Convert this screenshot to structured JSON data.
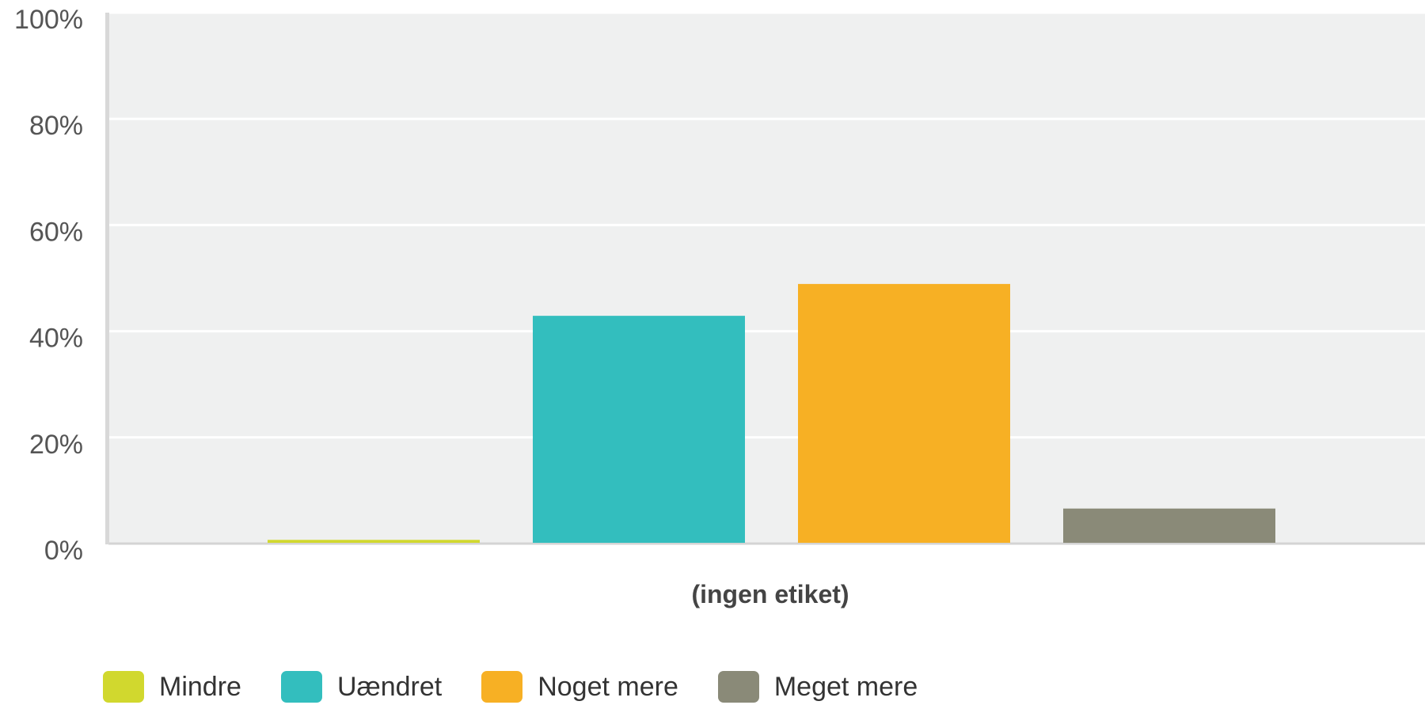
{
  "chart_data": {
    "type": "bar",
    "categories": [
      "(ingen etiket)"
    ],
    "series": [
      {
        "name": "Mindre",
        "values": [
          0.7
        ],
        "color": "#D1D82E"
      },
      {
        "name": "Uændret",
        "values": [
          42.9
        ],
        "color": "#33BEBE"
      },
      {
        "name": "Noget mere",
        "values": [
          48.9
        ],
        "color": "#F7B024"
      },
      {
        "name": "Meget mere",
        "values": [
          6.6
        ],
        "color": "#8A8A78"
      }
    ],
    "yticks": [
      "0%",
      "20%",
      "40%",
      "60%",
      "80%",
      "100%"
    ],
    "ylim": [
      0,
      100
    ],
    "grid": true,
    "legend": "bottom-left",
    "plot_background": "#EFF0F0"
  }
}
